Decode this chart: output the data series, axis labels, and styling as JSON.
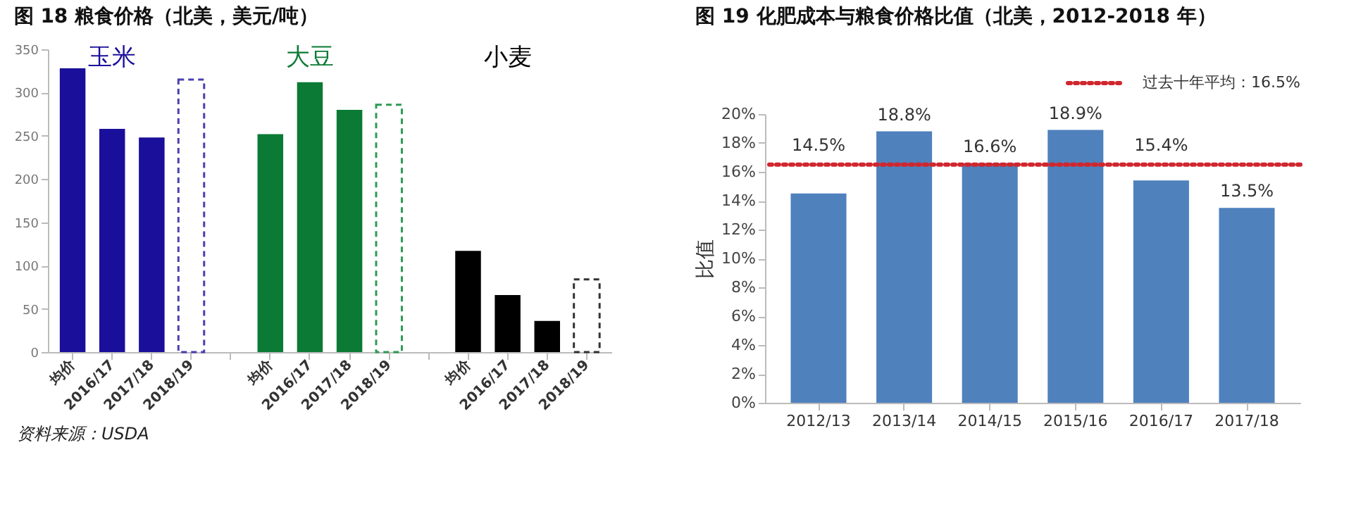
{
  "chart_data": [
    {
      "type": "bar",
      "title": "图 18 粮食价格（北美，美元/吨）",
      "categories": [
        "均价",
        "2016/17",
        "2017/18",
        "2018/19",
        null,
        "均价",
        "2016/17",
        "2017/18",
        "2018/19",
        null,
        "均价",
        "2016/17",
        "2017/18",
        "2018/19"
      ],
      "series": [
        {
          "name": "玉米",
          "color": "#1a0f9a",
          "values": [
            328,
            258,
            248,
            null,
            null,
            null,
            null,
            null,
            null,
            null,
            null,
            null,
            null,
            null
          ]
        },
        {
          "name": "大豆",
          "color": "#0a7a35",
          "values": [
            null,
            null,
            null,
            null,
            null,
            252,
            312,
            280,
            null,
            null,
            null,
            null,
            null,
            null
          ]
        },
        {
          "name": "小麦",
          "color": "#000000",
          "values": [
            null,
            null,
            null,
            null,
            null,
            null,
            null,
            null,
            null,
            null,
            117,
            66,
            36,
            null
          ]
        },
        {
          "line_style": "dashed",
          "colors": [
            null,
            null,
            null,
            "#4a3fb0",
            null,
            null,
            null,
            null,
            "#2e9a55",
            null,
            null,
            null,
            null,
            "#333333"
          ],
          "values": [
            null,
            null,
            null,
            315,
            null,
            null,
            null,
            null,
            286,
            null,
            null,
            null,
            null,
            84
          ]
        }
      ],
      "ylim": [
        0,
        350
      ],
      "yticks": [
        0,
        50,
        100,
        150,
        200,
        250,
        300,
        350
      ],
      "grid": false,
      "legend": false,
      "annotations": [
        "资料来源：USDA"
      ]
    },
    {
      "type": "bar",
      "title": "图 19 化肥成本与粮食价格比值（北美，2012-2018 年）",
      "categories": [
        "2012/13",
        "2013/14",
        "2014/15",
        "2015/16",
        "2016/17",
        "2017/18"
      ],
      "series": [
        {
          "color": "#4f81bd",
          "values": [
            14.5,
            18.8,
            16.6,
            18.9,
            15.4,
            13.5
          ],
          "value_labels": [
            "14.5%",
            "18.8%",
            "16.6%",
            "18.9%",
            "15.4%",
            "13.5%"
          ]
        }
      ],
      "ylabel": "比值",
      "ylim": [
        0,
        20
      ],
      "yticks": [
        {
          "value": 0,
          "label": "0%"
        },
        {
          "value": 2,
          "label": "2%"
        },
        {
          "value": 4,
          "label": "4%"
        },
        {
          "value": 6,
          "label": "6%"
        },
        {
          "value": 8,
          "label": "8%"
        },
        {
          "value": 10,
          "label": "10%"
        },
        {
          "value": 12,
          "label": "12%"
        },
        {
          "value": 14,
          "label": "14%"
        },
        {
          "value": 16,
          "label": "16%"
        },
        {
          "value": 18,
          "label": "18%"
        },
        {
          "value": 20,
          "label": "20%"
        }
      ],
      "ref_lines": [
        {
          "axis": "y",
          "value": 16.5,
          "label": "过去十年平均：16.5%",
          "color": "#d0262d",
          "line_style": "dotted"
        }
      ],
      "grid": false,
      "legend": "top right"
    }
  ]
}
